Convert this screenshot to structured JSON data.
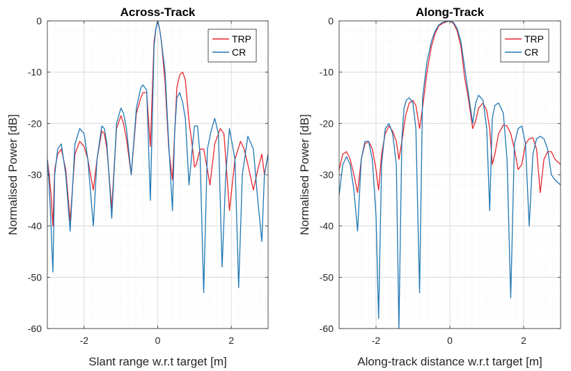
{
  "chart_data": [
    {
      "type": "line",
      "title": "Across-Track",
      "xlabel": "Slant range w.r.t target [m]",
      "ylabel": "Normalised Power [dB]",
      "xlim": [
        -3,
        3
      ],
      "ylim": [
        -60,
        0
      ],
      "xticks": [
        -2,
        0,
        2
      ],
      "yticks": [
        0,
        -10,
        -20,
        -30,
        -40,
        -50,
        -60
      ],
      "grid": true,
      "minor_grid": true,
      "legend_position": "top-right",
      "series": [
        {
          "name": "TRP",
          "color": "#e6262e",
          "x": [
            -3.0,
            -2.95,
            -2.9,
            -2.85,
            -2.8,
            -2.72,
            -2.62,
            -2.5,
            -2.38,
            -2.25,
            -2.12,
            -2.0,
            -1.9,
            -1.75,
            -1.65,
            -1.52,
            -1.45,
            -1.38,
            -1.25,
            -1.12,
            -1.0,
            -0.93,
            -0.85,
            -0.72,
            -0.58,
            -0.46,
            -0.4,
            -0.3,
            -0.2,
            -0.1,
            -0.05,
            0.0,
            0.05,
            0.1,
            0.2,
            0.3,
            0.4,
            0.46,
            0.52,
            0.6,
            0.68,
            0.75,
            0.85,
            0.95,
            1.0,
            1.05,
            1.15,
            1.25,
            1.35,
            1.42,
            1.55,
            1.7,
            1.8,
            1.85,
            1.95,
            2.1,
            2.25,
            2.35,
            2.45,
            2.6,
            2.72,
            2.83,
            2.9,
            3.0
          ],
          "y": [
            -27,
            -30,
            -34,
            -40,
            -29,
            -26,
            -25,
            -29,
            -39,
            -26,
            -23.5,
            -24.5,
            -27,
            -33,
            -27,
            -21.5,
            -22,
            -25,
            -36.5,
            -21,
            -18.5,
            -20,
            -23,
            -30,
            -18,
            -15,
            -14,
            -14,
            -24.5,
            -4,
            -1.5,
            0,
            -1.5,
            -4,
            -12,
            -25,
            -31,
            -22,
            -13,
            -10.5,
            -10,
            -11.5,
            -19.5,
            -25,
            -28.5,
            -28,
            -25,
            -25,
            -29,
            -32,
            -24,
            -21,
            -22,
            -27,
            -37,
            -27,
            -23.5,
            -25,
            -28,
            -33,
            -29,
            -26,
            -30,
            -26
          ]
        },
        {
          "name": "CR",
          "color": "#1f77b4",
          "x": [
            -3.0,
            -2.95,
            -2.9,
            -2.85,
            -2.8,
            -2.72,
            -2.62,
            -2.5,
            -2.38,
            -2.25,
            -2.12,
            -2.0,
            -1.9,
            -1.75,
            -1.65,
            -1.52,
            -1.45,
            -1.38,
            -1.25,
            -1.12,
            -1.0,
            -0.93,
            -0.85,
            -0.72,
            -0.58,
            -0.46,
            -0.4,
            -0.3,
            -0.2,
            -0.1,
            -0.05,
            0.0,
            0.05,
            0.1,
            0.2,
            0.3,
            0.4,
            0.46,
            0.52,
            0.6,
            0.68,
            0.75,
            0.85,
            0.95,
            1.0,
            1.08,
            1.15,
            1.25,
            1.35,
            1.45,
            1.55,
            1.65,
            1.75,
            1.85,
            1.95,
            2.1,
            2.2,
            2.3,
            2.45,
            2.6,
            2.72,
            2.83,
            2.9,
            3.0
          ],
          "y": [
            -27,
            -32,
            -40,
            -49,
            -30,
            -25,
            -24,
            -30,
            -41,
            -24,
            -21,
            -22,
            -27,
            -40,
            -27,
            -20.5,
            -21,
            -24,
            -38.5,
            -20,
            -17,
            -18,
            -21,
            -30,
            -17,
            -13,
            -12.5,
            -13.5,
            -35,
            -5,
            -1.5,
            0,
            -1.5,
            -4,
            -10,
            -24,
            -37,
            -22,
            -15,
            -14,
            -16,
            -19,
            -32,
            -24,
            -20.5,
            -20.5,
            -26,
            -53,
            -25,
            -21.5,
            -19,
            -22,
            -48,
            -30,
            -21,
            -27,
            -52,
            -30,
            -22.5,
            -25,
            -35,
            -43,
            -30,
            -26
          ]
        }
      ]
    },
    {
      "type": "line",
      "title": "Along-Track",
      "xlabel": "Along-track distance w.r.t target [m]",
      "ylabel": "Normalised Power [dB]",
      "xlim": [
        -3,
        3
      ],
      "ylim": [
        -60,
        0
      ],
      "xticks": [
        -2,
        0,
        2
      ],
      "yticks": [
        0,
        -10,
        -20,
        -30,
        -40,
        -50,
        -60
      ],
      "grid": true,
      "minor_grid": true,
      "legend_position": "top-right",
      "series": [
        {
          "name": "TRP",
          "color": "#e6262e",
          "x": [
            -3.0,
            -2.9,
            -2.8,
            -2.7,
            -2.6,
            -2.5,
            -2.4,
            -2.3,
            -2.2,
            -2.1,
            -2.0,
            -1.93,
            -1.85,
            -1.75,
            -1.65,
            -1.55,
            -1.45,
            -1.38,
            -1.3,
            -1.2,
            -1.1,
            -1.0,
            -0.92,
            -0.82,
            -0.74,
            -0.62,
            -0.5,
            -0.4,
            -0.3,
            -0.2,
            -0.1,
            0.0,
            0.1,
            0.2,
            0.3,
            0.4,
            0.5,
            0.62,
            0.7,
            0.78,
            0.9,
            1.0,
            1.08,
            1.15,
            1.22,
            1.32,
            1.45,
            1.55,
            1.65,
            1.75,
            1.85,
            1.95,
            2.05,
            2.15,
            2.25,
            2.35,
            2.45,
            2.55,
            2.65,
            2.75,
            2.85,
            3.0
          ],
          "y": [
            -29,
            -26,
            -25.5,
            -27,
            -30,
            -33.5,
            -27,
            -24,
            -23.5,
            -25,
            -29,
            -33,
            -26,
            -22,
            -20.5,
            -21.5,
            -23.5,
            -27,
            -23.5,
            -18.5,
            -16,
            -15.5,
            -16.5,
            -21,
            -17,
            -10,
            -5,
            -2.5,
            -1,
            -0.5,
            -0.2,
            0,
            -0.5,
            -2,
            -5,
            -11,
            -15,
            -21,
            -19.5,
            -17,
            -16,
            -17.5,
            -21,
            -28,
            -26,
            -22,
            -20.3,
            -20.5,
            -22,
            -25,
            -29,
            -28,
            -24,
            -23,
            -22.8,
            -25,
            -33.5,
            -27,
            -25.5,
            -25.5,
            -27,
            -28
          ]
        },
        {
          "name": "CR",
          "color": "#1f77b4",
          "x": [
            -3.0,
            -2.9,
            -2.8,
            -2.7,
            -2.6,
            -2.5,
            -2.4,
            -2.3,
            -2.2,
            -2.1,
            -2.0,
            -1.93,
            -1.85,
            -1.75,
            -1.65,
            -1.55,
            -1.45,
            -1.38,
            -1.3,
            -1.24,
            -1.18,
            -1.1,
            -1.0,
            -0.92,
            -0.82,
            -0.74,
            -0.62,
            -0.5,
            -0.4,
            -0.3,
            -0.2,
            -0.1,
            0.0,
            0.1,
            0.2,
            0.3,
            0.4,
            0.5,
            0.62,
            0.7,
            0.78,
            0.9,
            1.0,
            1.08,
            1.15,
            1.22,
            1.32,
            1.45,
            1.55,
            1.65,
            1.75,
            1.85,
            1.95,
            2.05,
            2.15,
            2.25,
            2.35,
            2.45,
            2.55,
            2.65,
            2.75,
            2.85,
            3.0
          ],
          "y": [
            -34,
            -28,
            -26.5,
            -28,
            -33,
            -41,
            -27,
            -23.5,
            -23.5,
            -27,
            -38,
            -58,
            -28,
            -21,
            -20,
            -22,
            -28,
            -60,
            -23,
            -17,
            -15.5,
            -15,
            -16,
            -21,
            -53,
            -15,
            -8,
            -4,
            -2,
            -0.8,
            -0.3,
            -0.1,
            0,
            -0.3,
            -1.5,
            -4,
            -9,
            -14,
            -20,
            -16,
            -14.5,
            -15.5,
            -21,
            -37,
            -19,
            -16.5,
            -16,
            -18,
            -27,
            -54,
            -24,
            -21,
            -20.5,
            -24,
            -40,
            -26,
            -23,
            -22.5,
            -23,
            -25,
            -30,
            -31,
            -32
          ]
        }
      ]
    }
  ]
}
